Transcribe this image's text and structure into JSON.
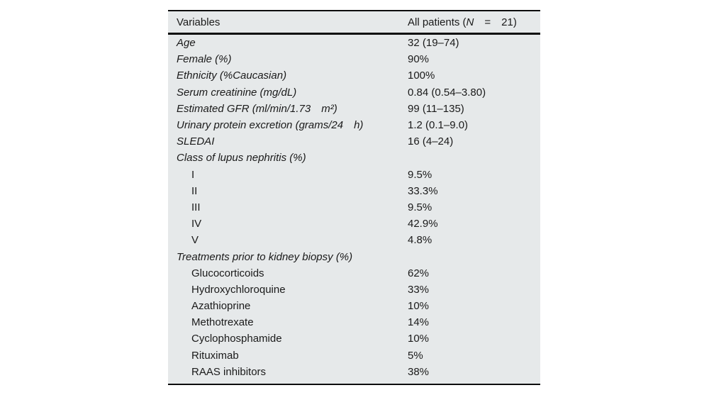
{
  "table": {
    "background_color": "#e6e9ea",
    "rule_color": "#0d0d0d",
    "header": {
      "variables_label": "Variables",
      "patients_prefix": "All patients (",
      "patients_n": "N",
      "patients_suffix": " = 21)"
    },
    "rows": [
      {
        "label": "Age",
        "value": "32 (19–74)"
      },
      {
        "label": "Female (%)",
        "value": "90%"
      },
      {
        "label": "Ethnicity (%Caucasian)",
        "value": "100%"
      },
      {
        "label": "Serum creatinine (mg/dL)",
        "value": "0.84 (0.54–3.80)"
      },
      {
        "label": "Estimated GFR (ml/min/1.73 m²)",
        "value": "99 (11–135)"
      },
      {
        "label": "Urinary protein excretion (grams/24 h)",
        "value": "1.2 (0.1–9.0)"
      },
      {
        "label": "SLEDAI",
        "value": "16 (4–24)"
      },
      {
        "label": "Class of lupus nephritis (%)",
        "value": ""
      },
      {
        "label": "I",
        "value": "9.5%"
      },
      {
        "label": "II",
        "value": "33.3%"
      },
      {
        "label": "III",
        "value": "9.5%"
      },
      {
        "label": "IV",
        "value": "42.9%"
      },
      {
        "label": "V",
        "value": "4.8%"
      },
      {
        "label": "Treatments prior to kidney biopsy (%)",
        "value": ""
      },
      {
        "label": "Glucocorticoids",
        "value": "62%"
      },
      {
        "label": "Hydroxychloroquine",
        "value": "33%"
      },
      {
        "label": "Azathioprine",
        "value": "10%"
      },
      {
        "label": "Methotrexate",
        "value": "14%"
      },
      {
        "label": "Cyclophosphamide",
        "value": "10%"
      },
      {
        "label": "Rituximab",
        "value": "5%"
      },
      {
        "label": "RAAS inhibitors",
        "value": "38%"
      }
    ]
  }
}
